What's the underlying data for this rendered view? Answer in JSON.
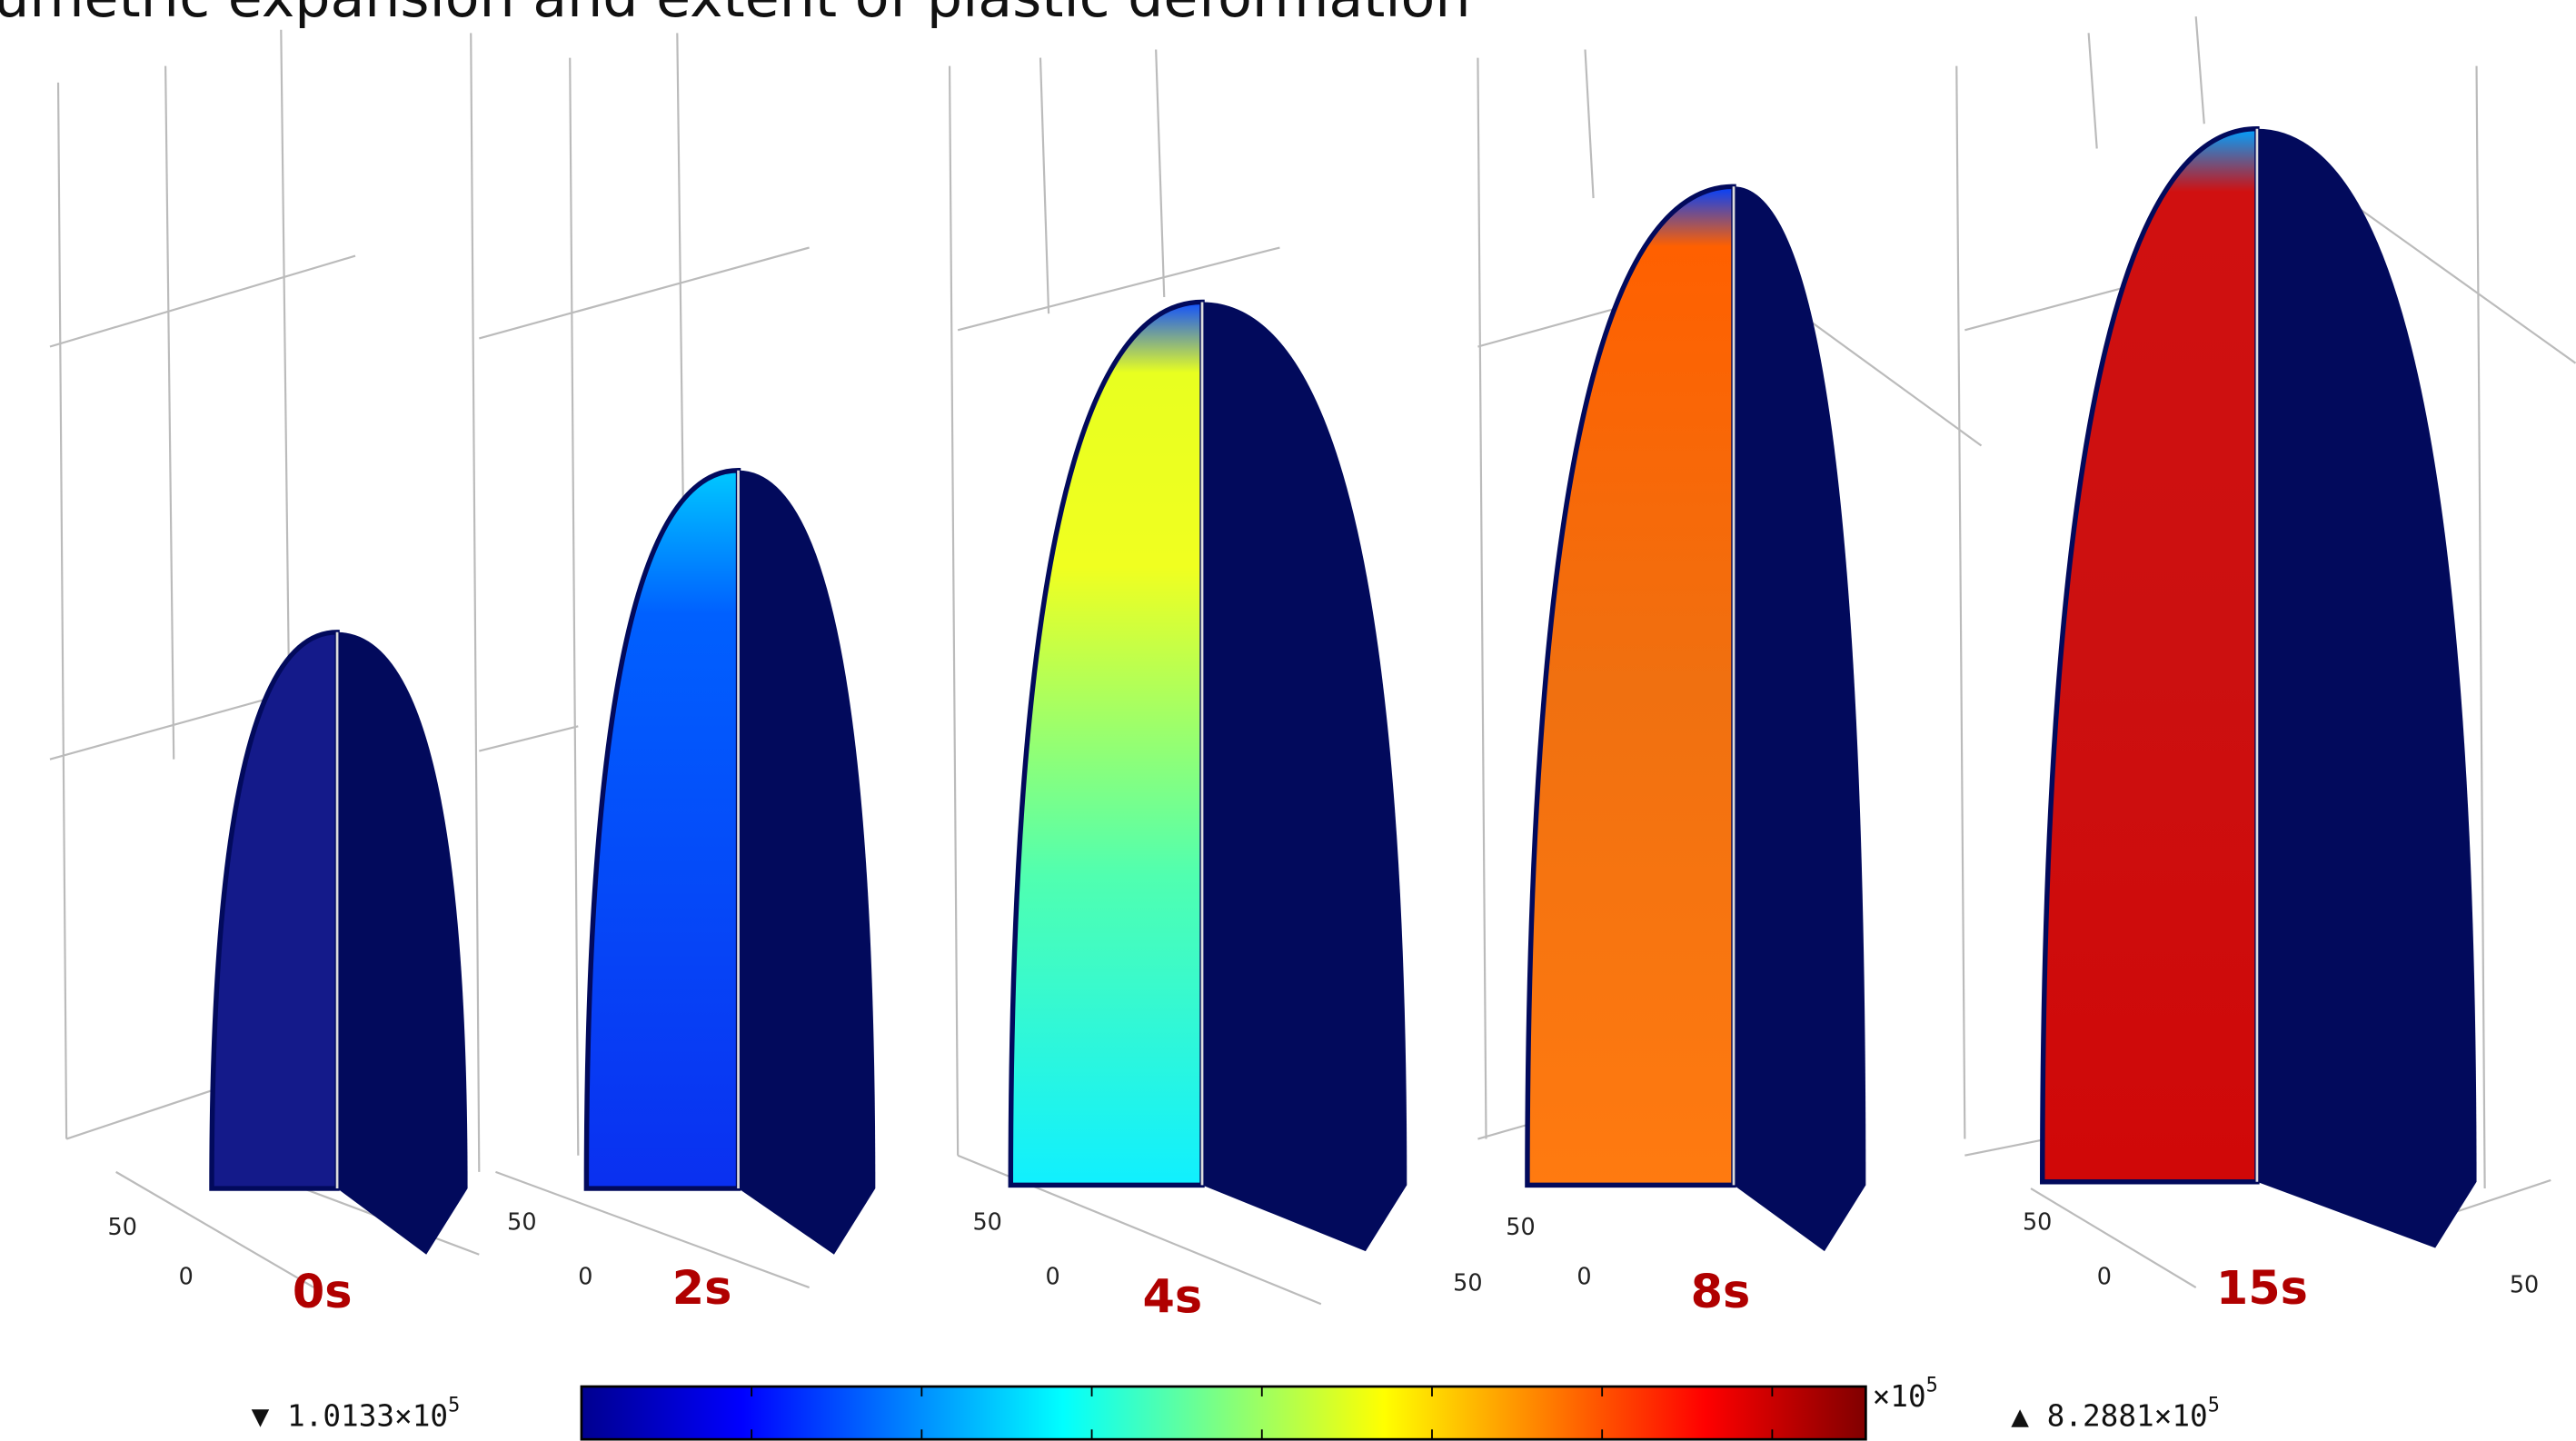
{
  "title": "umetric expansion and extent of plastic deformation",
  "panels": [
    {
      "label": "0s",
      "ticks": [
        "50",
        "0"
      ]
    },
    {
      "label": "2s",
      "ticks": [
        "50",
        "0"
      ]
    },
    {
      "label": "4s",
      "ticks": [
        "50",
        "0",
        "50"
      ]
    },
    {
      "label": "8s",
      "ticks": [
        "50",
        "0"
      ]
    },
    {
      "label": "15s",
      "ticks": [
        "50",
        "0",
        "50"
      ]
    }
  ],
  "colorbar": {
    "min_marker": "▼",
    "min_label": "1.0133×10",
    "min_exponent": "5",
    "max_marker": "▲",
    "max_label": "8.2881×10",
    "max_exponent": "5",
    "unit_label": "×10",
    "unit_exponent": "5"
  }
}
